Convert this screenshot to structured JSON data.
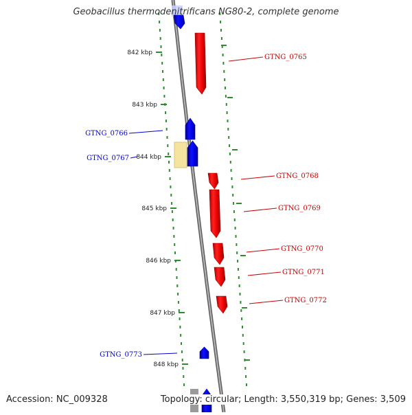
{
  "title": "Geobacillus thermodenitrificans NG80-2, complete genome",
  "footer": {
    "accession": "Accession: NC_009328",
    "summary": "Topology: circular; Length: 3,550,319 bp; Genes: 3,509"
  },
  "scale_labels": [
    "842 kbp",
    "843 kbp",
    "844 kbp",
    "845 kbp",
    "846 kbp",
    "847 kbp",
    "848 kbp"
  ],
  "colors": {
    "forward_gene": "#ff0000",
    "reverse_gene": "#0000ff",
    "highlight": "#f4e4a0",
    "forward_label": "#cc0000",
    "reverse_label": "#0000cc",
    "backbone": "#8c8c8c",
    "tick": "#2e8b2e"
  },
  "genes": {
    "forward": [
      {
        "label": "GTNG_0765"
      },
      {
        "label": "GTNG_0768"
      },
      {
        "label": "GTNG_0769"
      },
      {
        "label": "GTNG_0770"
      },
      {
        "label": "GTNG_0771"
      },
      {
        "label": "GTNG_0772"
      }
    ],
    "reverse": [
      {
        "label": "GTNG_0766"
      },
      {
        "label": "GTNG_0767"
      },
      {
        "label": "GTNG_0773"
      }
    ]
  }
}
